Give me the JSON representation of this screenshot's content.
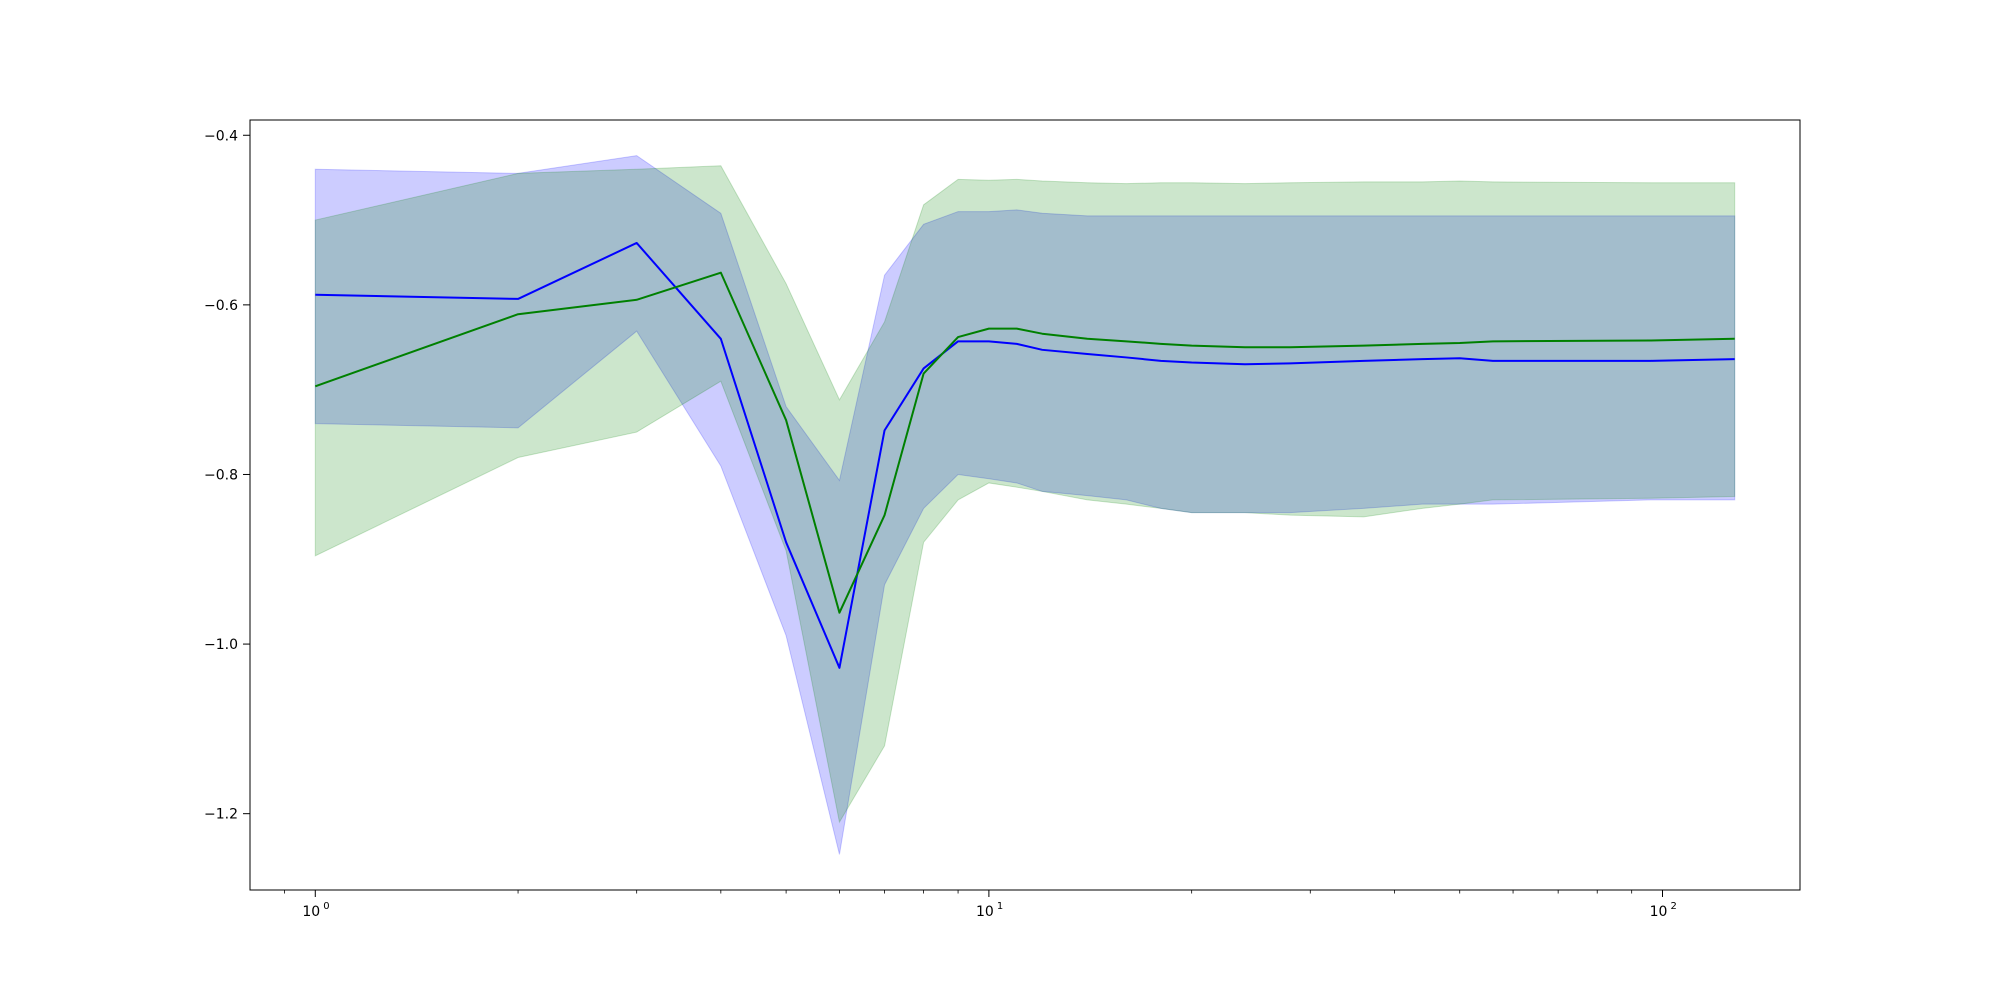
{
  "chart_data": {
    "type": "line",
    "title": "",
    "xlabel": "",
    "ylabel": "",
    "xscale": "log",
    "xlim": [
      0.8,
      160
    ],
    "ylim": [
      -1.29,
      -0.382
    ],
    "grid": false,
    "legend": "none",
    "x_ticks": [
      {
        "value": 1,
        "label": "10",
        "exp": "0"
      },
      {
        "value": 10,
        "label": "10",
        "exp": "1"
      },
      {
        "value": 100,
        "label": "10",
        "exp": "2"
      }
    ],
    "y_ticks": [
      {
        "value": -0.4,
        "label": "−0.4"
      },
      {
        "value": -0.6,
        "label": "−0.6"
      },
      {
        "value": -0.8,
        "label": "−0.8"
      },
      {
        "value": -1.0,
        "label": "−1.0"
      },
      {
        "value": -1.2,
        "label": "−1.2"
      }
    ],
    "series": [
      {
        "color": "#0000ff",
        "band_color": "#0000ff",
        "band_opacity": 0.2,
        "x": [
          1,
          2,
          3,
          4,
          5,
          6,
          7,
          8,
          9,
          10,
          11,
          12,
          14,
          16,
          18,
          20,
          24,
          28,
          36,
          44,
          50,
          56,
          96,
          128
        ],
        "y": [
          -0.588,
          -0.593,
          -0.527,
          -0.64,
          -0.88,
          -1.028,
          -0.748,
          -0.675,
          -0.643,
          -0.643,
          -0.646,
          -0.653,
          -0.658,
          -0.662,
          -0.666,
          -0.668,
          -0.67,
          -0.669,
          -0.666,
          -0.664,
          -0.663,
          -0.666,
          -0.666,
          -0.664
        ],
        "lower": [
          -0.74,
          -0.745,
          -0.631,
          -0.79,
          -0.99,
          -1.248,
          -0.93,
          -0.84,
          -0.8,
          -0.805,
          -0.81,
          -0.82,
          -0.825,
          -0.83,
          -0.84,
          -0.845,
          -0.845,
          -0.845,
          -0.84,
          -0.835,
          -0.835,
          -0.835,
          -0.83,
          -0.83
        ],
        "upper": [
          -0.44,
          -0.445,
          -0.424,
          -0.492,
          -0.72,
          -0.807,
          -0.565,
          -0.505,
          -0.49,
          -0.49,
          -0.488,
          -0.492,
          -0.495,
          -0.495,
          -0.495,
          -0.495,
          -0.495,
          -0.495,
          -0.495,
          -0.495,
          -0.495,
          -0.495,
          -0.495,
          -0.495
        ]
      },
      {
        "color": "#008000",
        "band_color": "#008000",
        "band_opacity": 0.2,
        "x": [
          1,
          2,
          3,
          4,
          5,
          6,
          7,
          8,
          9,
          10,
          11,
          12,
          14,
          16,
          18,
          20,
          24,
          28,
          36,
          44,
          50,
          56,
          96,
          128
        ],
        "y": [
          -0.696,
          -0.611,
          -0.594,
          -0.562,
          -0.736,
          -0.963,
          -0.848,
          -0.681,
          -0.638,
          -0.628,
          -0.628,
          -0.634,
          -0.64,
          -0.643,
          -0.646,
          -0.648,
          -0.65,
          -0.65,
          -0.648,
          -0.646,
          -0.645,
          -0.643,
          -0.642,
          -0.64
        ],
        "lower": [
          -0.896,
          -0.78,
          -0.75,
          -0.69,
          -0.89,
          -1.21,
          -1.12,
          -0.88,
          -0.83,
          -0.81,
          -0.815,
          -0.82,
          -0.83,
          -0.835,
          -0.84,
          -0.845,
          -0.845,
          -0.848,
          -0.85,
          -0.84,
          -0.835,
          -0.83,
          -0.828,
          -0.826
        ],
        "upper": [
          -0.5,
          -0.445,
          -0.44,
          -0.436,
          -0.575,
          -0.712,
          -0.62,
          -0.482,
          -0.452,
          -0.453,
          -0.452,
          -0.454,
          -0.456,
          -0.457,
          -0.456,
          -0.456,
          -0.457,
          -0.456,
          -0.455,
          -0.455,
          -0.454,
          -0.455,
          -0.456,
          -0.456
        ]
      }
    ]
  }
}
